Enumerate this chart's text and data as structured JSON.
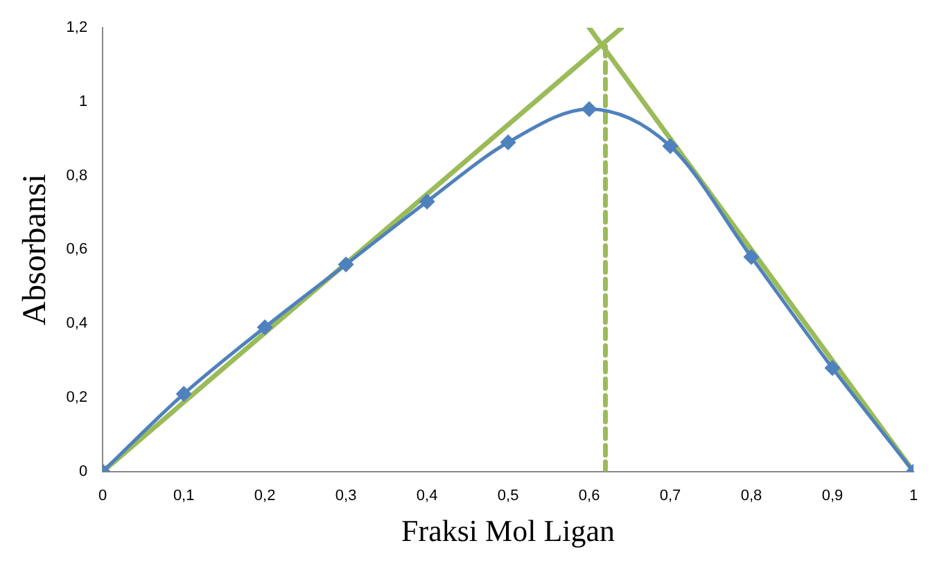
{
  "chart_data": {
    "type": "line",
    "xlabel": "Fraksi Mol Ligan",
    "ylabel": "Absorbansi",
    "xlim": [
      0,
      1
    ],
    "ylim": [
      0,
      1.2
    ],
    "xticks": [
      0,
      {
        "value": 0.1,
        "label": "0,1"
      },
      {
        "value": 0.2,
        "label": "0,2"
      },
      {
        "value": 0.3,
        "label": "0,3"
      },
      {
        "value": 0.4,
        "label": "0,4"
      },
      {
        "value": 0.5,
        "label": "0,5"
      },
      {
        "value": 0.6,
        "label": "0,6"
      },
      {
        "value": 0.7,
        "label": "0,7"
      },
      {
        "value": 0.8,
        "label": "0,8"
      },
      {
        "value": 0.9,
        "label": "0,9"
      },
      1
    ],
    "yticks": [
      0,
      {
        "value": 0.2,
        "label": "0,2"
      },
      {
        "value": 0.4,
        "label": "0,4"
      },
      {
        "value": 0.6,
        "label": "0,6"
      },
      {
        "value": 0.8,
        "label": "0,8"
      },
      1,
      {
        "value": 1.2,
        "label": "1,2"
      }
    ],
    "grid": false,
    "legend": false,
    "series": [
      {
        "color": "#4f81bd",
        "marker": "diamond",
        "line_style": "solid",
        "x": [
          0,
          0.1,
          0.2,
          0.3,
          0.4,
          0.5,
          0.6,
          0.7,
          0.8,
          0.9,
          1
        ],
        "values": [
          0,
          0.21,
          0.39,
          0.56,
          0.73,
          0.89,
          0.98,
          0.88,
          0.58,
          0.28,
          0
        ]
      },
      {
        "color": "#9bbb59",
        "marker": "none",
        "line_style": "solid",
        "x": [
          0,
          0.64
        ],
        "values": [
          0,
          1.2
        ]
      },
      {
        "color": "#9bbb59",
        "marker": "none",
        "line_style": "solid",
        "x": [
          0.6,
          1
        ],
        "values": [
          1.2,
          0
        ]
      },
      {
        "color": "#9bbb59",
        "marker": "none",
        "line_style": "dashed",
        "x": [
          0.62,
          0.62
        ],
        "values": [
          0,
          1.15
        ]
      }
    ]
  }
}
